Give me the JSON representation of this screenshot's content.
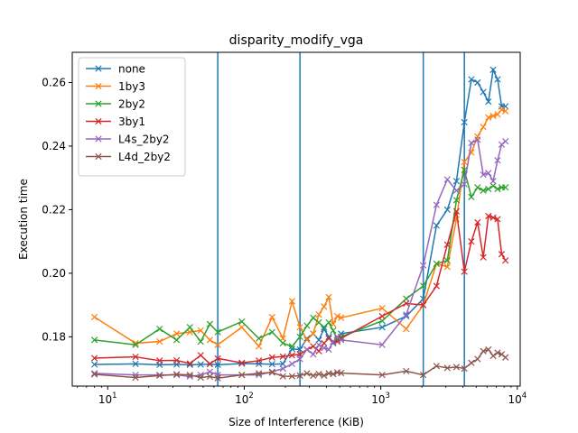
{
  "chart_data": {
    "type": "line",
    "title": "disparity_modify_vga",
    "xlabel": "Size of Interference (KiB)",
    "ylabel": "Execution time",
    "xscale": "log",
    "xlim": [
      5.5,
      10500
    ],
    "ylim": [
      0.1645,
      0.2695
    ],
    "xticks": [
      {
        "value": 10,
        "base": "10",
        "exp": "1"
      },
      {
        "value": 100,
        "base": "10",
        "exp": "2"
      },
      {
        "value": 1000,
        "base": "10",
        "exp": "3"
      },
      {
        "value": 10000,
        "base": "10",
        "exp": "4"
      }
    ],
    "yticks": [
      {
        "value": 0.18,
        "label": "0.18"
      },
      {
        "value": 0.2,
        "label": "0.20"
      },
      {
        "value": 0.22,
        "label": "0.22"
      },
      {
        "value": 0.24,
        "label": "0.24"
      },
      {
        "value": 0.26,
        "label": "0.26"
      }
    ],
    "vlines": [
      64,
      256,
      2048,
      4096
    ],
    "vline_color": "#1f77b4",
    "legend_position": "upper left",
    "grid": false,
    "x": [
      8,
      16,
      24,
      32,
      40,
      48,
      56,
      64,
      96,
      128,
      160,
      192,
      224,
      256,
      288,
      320,
      352,
      384,
      416,
      448,
      480,
      512,
      1024,
      1536,
      2048,
      2560,
      3072,
      3584,
      4096,
      4608,
      5120,
      5632,
      6144,
      6656,
      7168,
      7680,
      8192
    ],
    "series": [
      {
        "name": "none",
        "color": "#1f77b4",
        "values": [
          0.1713,
          0.1715,
          0.1712,
          0.1713,
          0.1712,
          0.1713,
          0.1714,
          0.1712,
          0.1716,
          0.1715,
          0.1714,
          0.1715,
          0.1762,
          0.176,
          0.1795,
          0.181,
          0.179,
          0.1825,
          0.18,
          0.178,
          0.179,
          0.181,
          0.183,
          0.1865,
          0.192,
          0.215,
          0.22,
          0.229,
          0.2475,
          0.261,
          0.26,
          0.257,
          0.254,
          0.264,
          0.261,
          0.2525,
          0.2525
        ]
      },
      {
        "name": "1by3",
        "color": "#ff7f0e",
        "values": [
          0.1862,
          0.178,
          0.1785,
          0.181,
          0.1815,
          0.182,
          0.179,
          0.1775,
          0.183,
          0.177,
          0.1862,
          0.1795,
          0.1912,
          0.183,
          0.179,
          0.181,
          0.187,
          0.1895,
          0.1925,
          0.184,
          0.1865,
          0.186,
          0.189,
          0.1825,
          0.19,
          0.203,
          0.202,
          0.217,
          0.235,
          0.238,
          0.243,
          0.246,
          0.249,
          0.2495,
          0.25,
          0.2515,
          0.251
        ]
      },
      {
        "name": "2by2",
        "color": "#2ca02c",
        "values": [
          0.179,
          0.1775,
          0.1825,
          0.179,
          0.183,
          0.1785,
          0.184,
          0.1815,
          0.1848,
          0.1795,
          0.1815,
          0.178,
          0.177,
          0.18,
          0.1835,
          0.186,
          0.1845,
          0.183,
          0.1845,
          0.182,
          0.179,
          0.18,
          0.185,
          0.192,
          0.196,
          0.203,
          0.204,
          0.223,
          0.2325,
          0.224,
          0.227,
          0.226,
          0.2265,
          0.2275,
          0.2265,
          0.227,
          0.227
        ]
      },
      {
        "name": "3by1",
        "color": "#d62728",
        "values": [
          0.1733,
          0.1737,
          0.1725,
          0.1726,
          0.1716,
          0.1742,
          0.1715,
          0.1732,
          0.1718,
          0.1725,
          0.1735,
          0.1738,
          0.1742,
          0.1745,
          0.176,
          0.177,
          0.1755,
          0.178,
          0.1795,
          0.1785,
          0.1785,
          0.1795,
          0.1865,
          0.1905,
          0.19,
          0.196,
          0.209,
          0.2195,
          0.2005,
          0.21,
          0.216,
          0.205,
          0.218,
          0.2175,
          0.217,
          0.206,
          0.204
        ]
      },
      {
        "name": "L4s_2by2",
        "color": "#9467bd",
        "values": [
          0.1685,
          0.168,
          0.168,
          0.168,
          0.1675,
          0.168,
          0.169,
          0.168,
          0.168,
          0.168,
          0.169,
          0.17,
          0.1715,
          0.173,
          0.176,
          0.1745,
          0.1775,
          0.1765,
          0.176,
          0.1785,
          0.18,
          0.179,
          0.1775,
          0.187,
          0.2025,
          0.2215,
          0.2295,
          0.226,
          0.228,
          0.241,
          0.242,
          0.231,
          0.2315,
          0.229,
          0.2355,
          0.2405,
          0.2415
        ]
      },
      {
        "name": "L4d_2by2",
        "color": "#8c564b",
        "values": [
          0.1682,
          0.1672,
          0.1678,
          0.1682,
          0.168,
          0.1672,
          0.1675,
          0.167,
          0.168,
          0.1685,
          0.1688,
          0.1676,
          0.1676,
          0.1678,
          0.1685,
          0.1678,
          0.1683,
          0.1678,
          0.1685,
          0.1683,
          0.1688,
          0.1686,
          0.168,
          0.1692,
          0.168,
          0.1708,
          0.1702,
          0.1705,
          0.17,
          0.1718,
          0.173,
          0.1755,
          0.176,
          0.174,
          0.175,
          0.1745,
          0.1735
        ]
      }
    ]
  }
}
